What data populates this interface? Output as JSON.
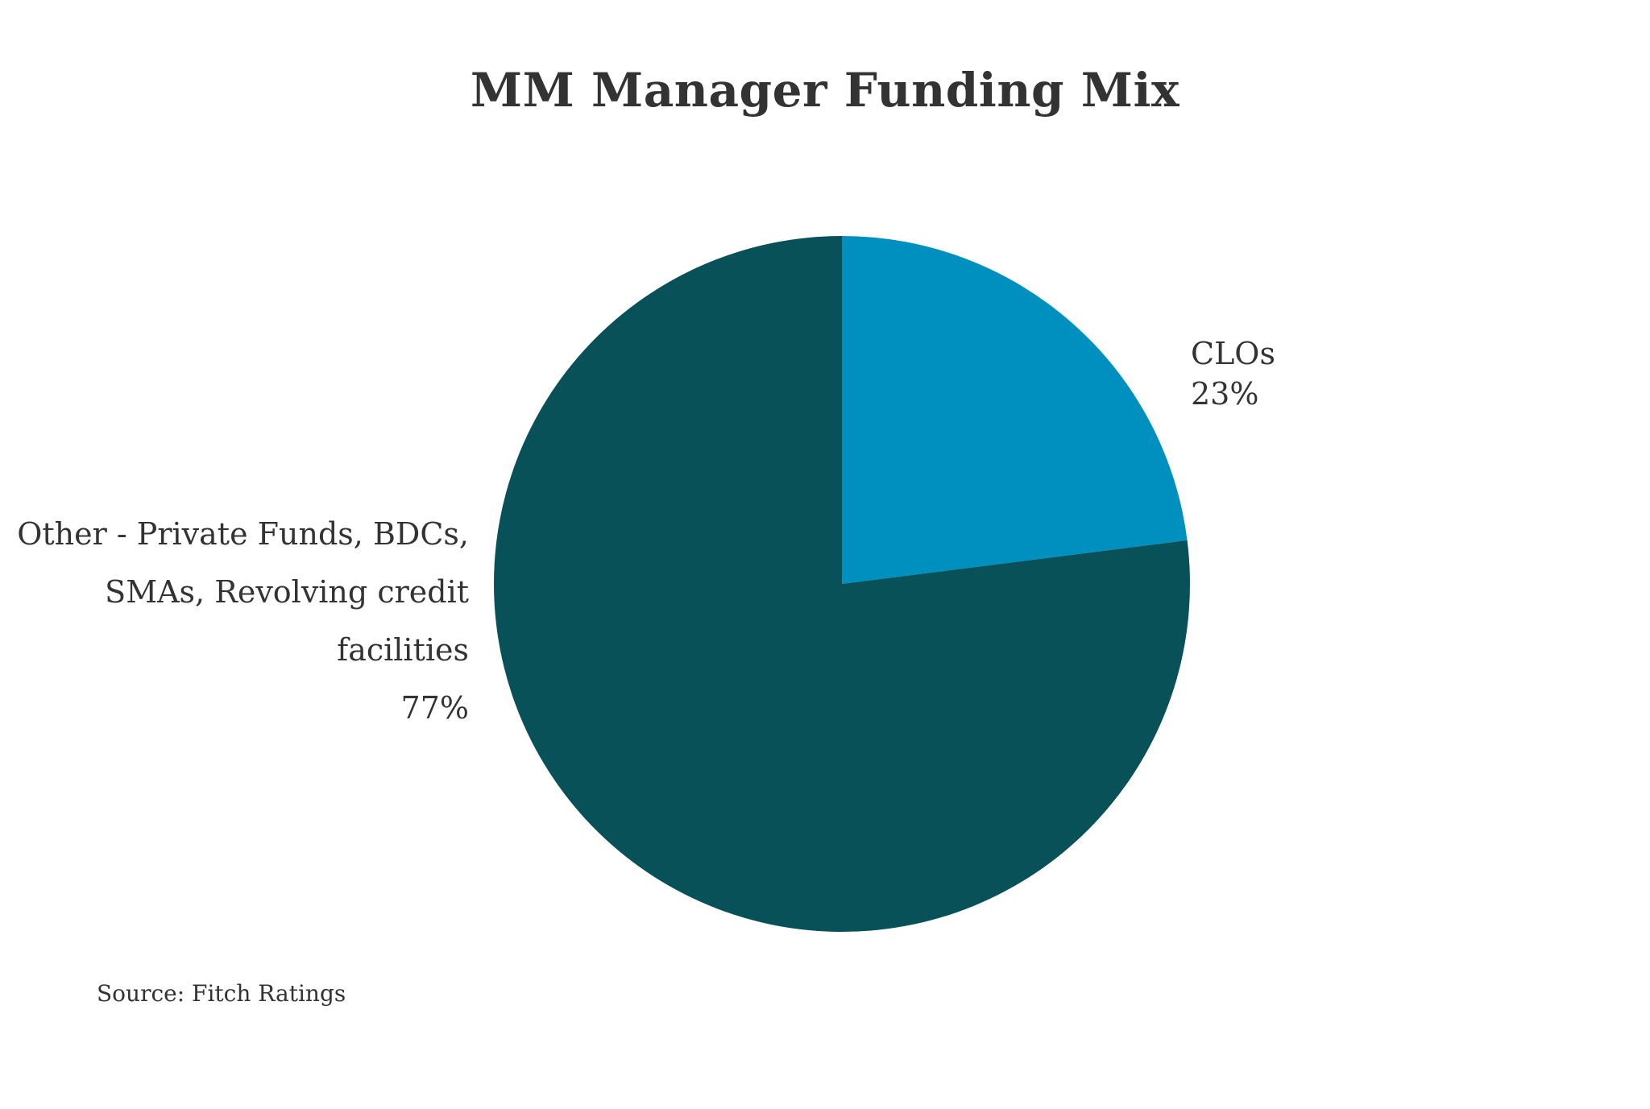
{
  "chart_data": {
    "type": "pie",
    "title": "MM Manager Funding Mix",
    "slices": [
      {
        "name": "CLOs",
        "value": 23,
        "label_lines": [
          "CLOs",
          "23%"
        ],
        "color": "#0090BF"
      },
      {
        "name": "Other - Private Funds, BDCs, SMAs, Revolving credit facilities",
        "value": 77,
        "label_lines": [
          "Other - Private Funds, BDCs,",
          "SMAs, Revolving credit",
          "facilities",
          "77%"
        ],
        "color": "#085158"
      }
    ],
    "start_angle_deg": 0,
    "direction": "clockwise",
    "legend": "none"
  },
  "source": "Source: Fitch Ratings",
  "colors": {
    "background": "#ffffff",
    "text": "#333333"
  }
}
